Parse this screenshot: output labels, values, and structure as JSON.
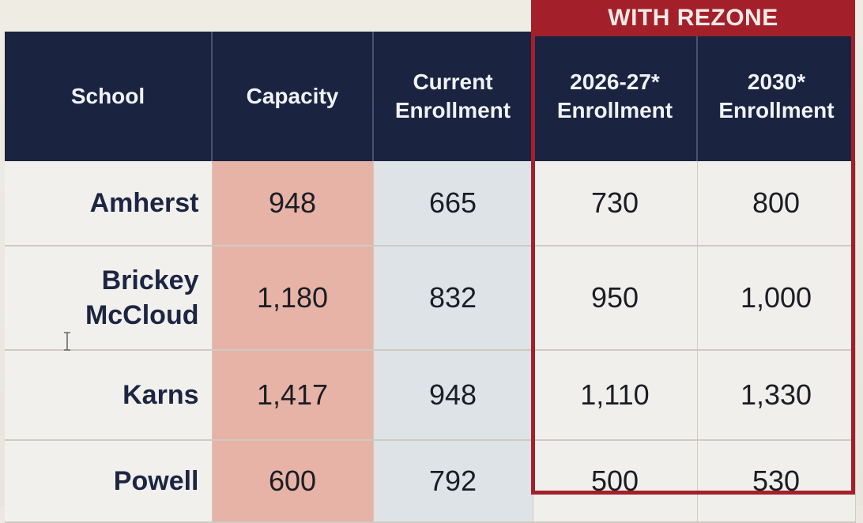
{
  "banner": {
    "label": "WITH REZONE"
  },
  "columns": [
    {
      "line1": "School",
      "line2": ""
    },
    {
      "line1": "Capacity",
      "line2": ""
    },
    {
      "line1": "Current",
      "line2": "Enrollment"
    },
    {
      "line1": "2026-27*",
      "line2": "Enrollment"
    },
    {
      "line1": "2030*",
      "line2": "Enrollment"
    }
  ],
  "rows": [
    {
      "school_line1": "Amherst",
      "school_line2": "",
      "capacity": "948",
      "current": "665",
      "enroll_2026_27": "730",
      "enroll_2030": "800"
    },
    {
      "school_line1": "Brickey",
      "school_line2": "McCloud",
      "capacity": "1,180",
      "current": "832",
      "enroll_2026_27": "950",
      "enroll_2030": "1,000"
    },
    {
      "school_line1": "Karns",
      "school_line2": "",
      "capacity": "1,417",
      "current": "948",
      "enroll_2026_27": "1,110",
      "enroll_2030": "1,330"
    },
    {
      "school_line1": "Powell",
      "school_line2": "",
      "capacity": "600",
      "current": "792",
      "enroll_2026_27": "500",
      "enroll_2030": "530"
    }
  ],
  "colors": {
    "header_bg": "#1a2340",
    "rezone_red": "#a3202a",
    "capacity_fill": "#e6b3a6",
    "current_fill": "#dde3e6"
  },
  "icons": {
    "cursor": "text-cursor-icon"
  }
}
